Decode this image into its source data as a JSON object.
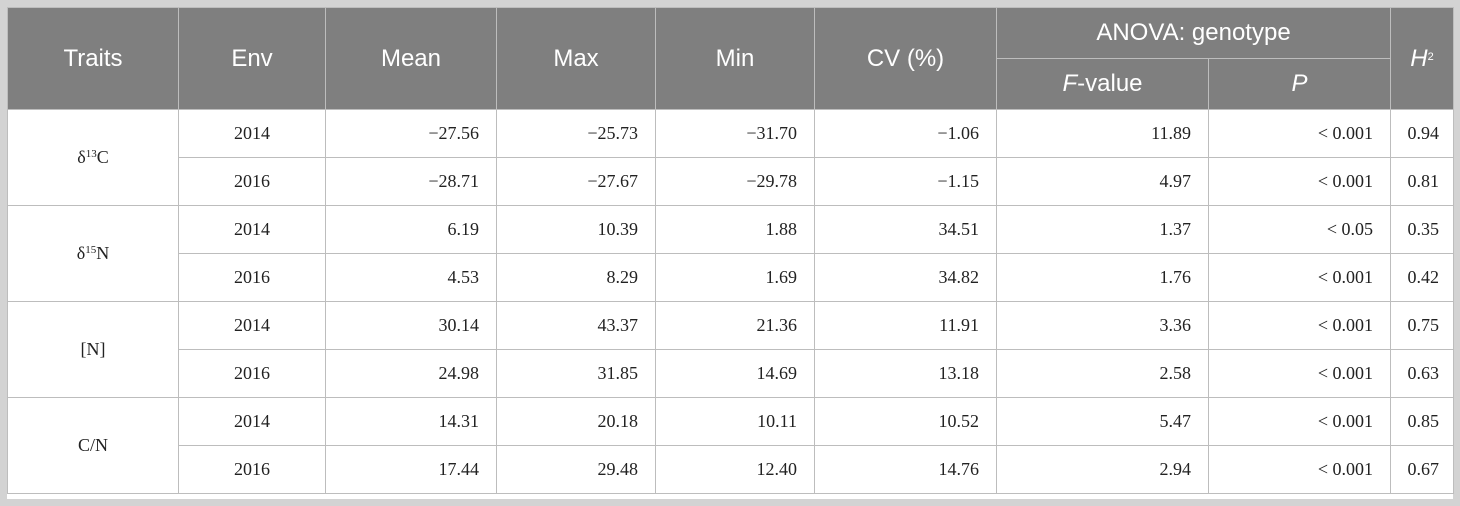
{
  "header": {
    "traits": "Traits",
    "env": "Env",
    "mean": "Mean",
    "max": "Max",
    "min": "Min",
    "cv": "CV (%)",
    "anova": "ANOVA: genotype",
    "fvalue_italic": "F",
    "fvalue_rest": "-value",
    "p": "P",
    "h2_base": "H",
    "h2_sup": "2"
  },
  "groups": [
    {
      "trait_pre": "δ",
      "trait_sup": "13",
      "trait_post": "C",
      "rows": [
        {
          "env": "2014",
          "mean": "−27.56",
          "max": "−25.73",
          "min": "−31.70",
          "cv": "−1.06",
          "f": "11.89",
          "p": "< 0.001",
          "h2": "0.94"
        },
        {
          "env": "2016",
          "mean": "−28.71",
          "max": "−27.67",
          "min": "−29.78",
          "cv": "−1.15",
          "f": "4.97",
          "p": "< 0.001",
          "h2": "0.81"
        }
      ]
    },
    {
      "trait_pre": "δ",
      "trait_sup": "15",
      "trait_post": "N",
      "rows": [
        {
          "env": "2014",
          "mean": "6.19",
          "max": "10.39",
          "min": "1.88",
          "cv": "34.51",
          "f": "1.37",
          "p": "< 0.05",
          "h2": "0.35"
        },
        {
          "env": "2016",
          "mean": "4.53",
          "max": "8.29",
          "min": "1.69",
          "cv": "34.82",
          "f": "1.76",
          "p": "< 0.001",
          "h2": "0.42"
        }
      ]
    },
    {
      "trait_pre": "[N]",
      "trait_sup": "",
      "trait_post": "",
      "rows": [
        {
          "env": "2014",
          "mean": "30.14",
          "max": "43.37",
          "min": "21.36",
          "cv": "11.91",
          "f": "3.36",
          "p": "< 0.001",
          "h2": "0.75"
        },
        {
          "env": "2016",
          "mean": "24.98",
          "max": "31.85",
          "min": "14.69",
          "cv": "13.18",
          "f": "2.58",
          "p": "< 0.001",
          "h2": "0.63"
        }
      ]
    },
    {
      "trait_pre": "C/N",
      "trait_sup": "",
      "trait_post": "",
      "rows": [
        {
          "env": "2014",
          "mean": "14.31",
          "max": "20.18",
          "min": "10.11",
          "cv": "10.52",
          "f": "5.47",
          "p": "< 0.001",
          "h2": "0.85"
        },
        {
          "env": "2016",
          "mean": "17.44",
          "max": "29.48",
          "min": "12.40",
          "cv": "14.76",
          "f": "2.94",
          "p": "< 0.001",
          "h2": "0.67"
        }
      ]
    }
  ]
}
